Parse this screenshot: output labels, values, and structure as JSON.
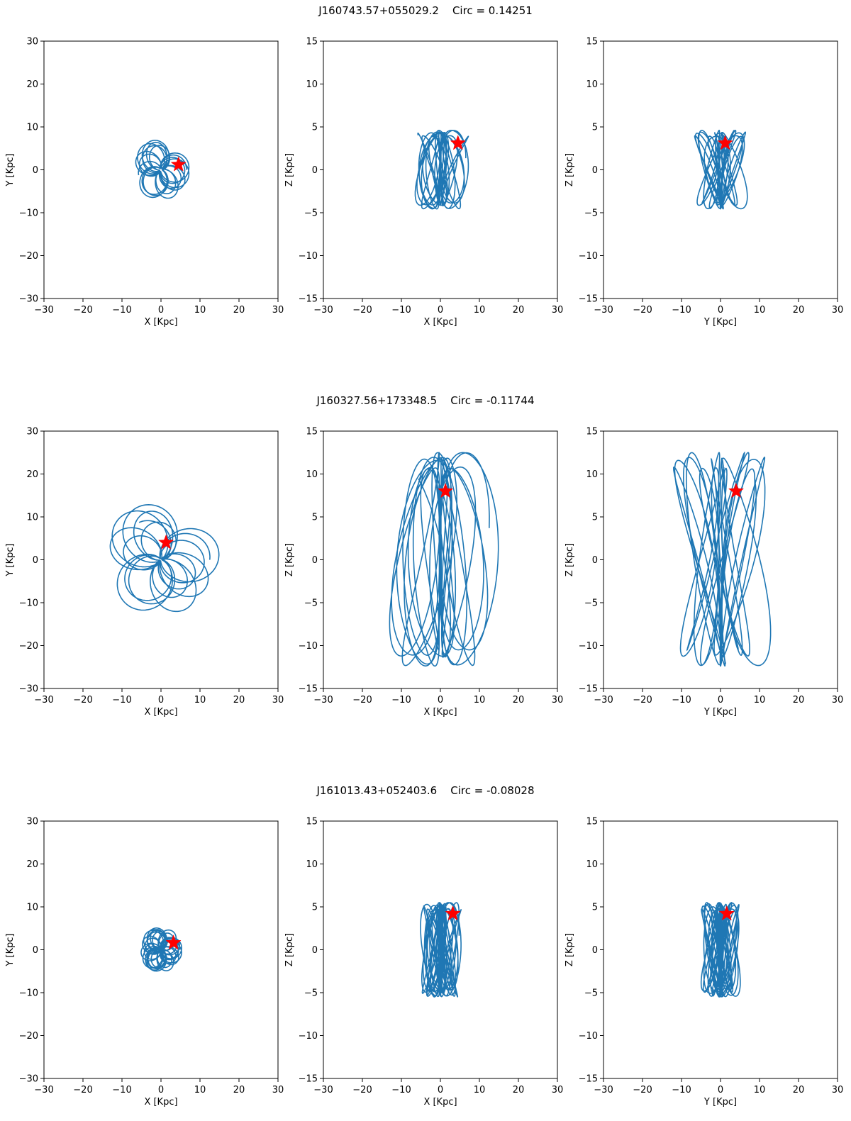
{
  "figure": {
    "rows": [
      {
        "object_id": "J160743.57+055029.2",
        "circ_label": "Circ = 0.14251",
        "star": {
          "x": 4.5,
          "y": 1.2,
          "z": 3.1
        },
        "orbit": {
          "r_min": 0.4,
          "r_max": 6.5,
          "z_amp": 4.6,
          "n_loops": 18,
          "extra": 0
        }
      },
      {
        "object_id": "J160327.56+173348.5",
        "circ_label": "Circ = -0.11744",
        "star": {
          "x": 1.3,
          "y": 4.0,
          "z": 8.0
        },
        "orbit": {
          "r_min": 0.4,
          "r_max": 12.5,
          "z_amp": 12.5,
          "n_loops": 16,
          "extra": 1
        }
      },
      {
        "object_id": "J161013.43+052403.6",
        "circ_label": "Circ = -0.08028",
        "star": {
          "x": 3.2,
          "y": 1.6,
          "z": 4.2
        },
        "orbit": {
          "r_min": 0.2,
          "r_max": 4.8,
          "z_amp": 5.5,
          "n_loops": 30,
          "extra": 2
        }
      }
    ]
  },
  "chart_data": [
    {
      "type": "line",
      "panel": "XY",
      "xlabel": "X [Kpc]",
      "ylabel": "Y [Kpc]",
      "xlim": [
        -30,
        30
      ],
      "ylim": [
        -30,
        30
      ],
      "xticks": [
        "−30",
        "−20",
        "−10",
        "0",
        "10",
        "20",
        "30"
      ],
      "yticks": [
        "−30",
        "−20",
        "−10",
        "0",
        "10",
        "20",
        "30"
      ]
    },
    {
      "type": "line",
      "panel": "XZ",
      "xlabel": "X [Kpc]",
      "ylabel": "Z [Kpc]",
      "xlim": [
        -30,
        30
      ],
      "ylim": [
        -15,
        15
      ],
      "xticks": [
        "−30",
        "−20",
        "−10",
        "0",
        "10",
        "20",
        "30"
      ],
      "yticks": [
        "−15",
        "−10",
        "−5",
        "0",
        "5",
        "10",
        "15"
      ]
    },
    {
      "type": "line",
      "panel": "YZ",
      "xlabel": "Y [Kpc]",
      "ylabel": "Z [Kpc]",
      "xlim": [
        -30,
        30
      ],
      "ylim": [
        -15,
        15
      ],
      "xticks": [
        "−30",
        "−20",
        "−10",
        "0",
        "10",
        "20",
        "30"
      ],
      "yticks": [
        "−15",
        "−10",
        "−5",
        "0",
        "5",
        "10",
        "15"
      ]
    }
  ],
  "colors": {
    "orbit": "#1f77b4",
    "star": "#ff0000",
    "axes": "#000000"
  }
}
